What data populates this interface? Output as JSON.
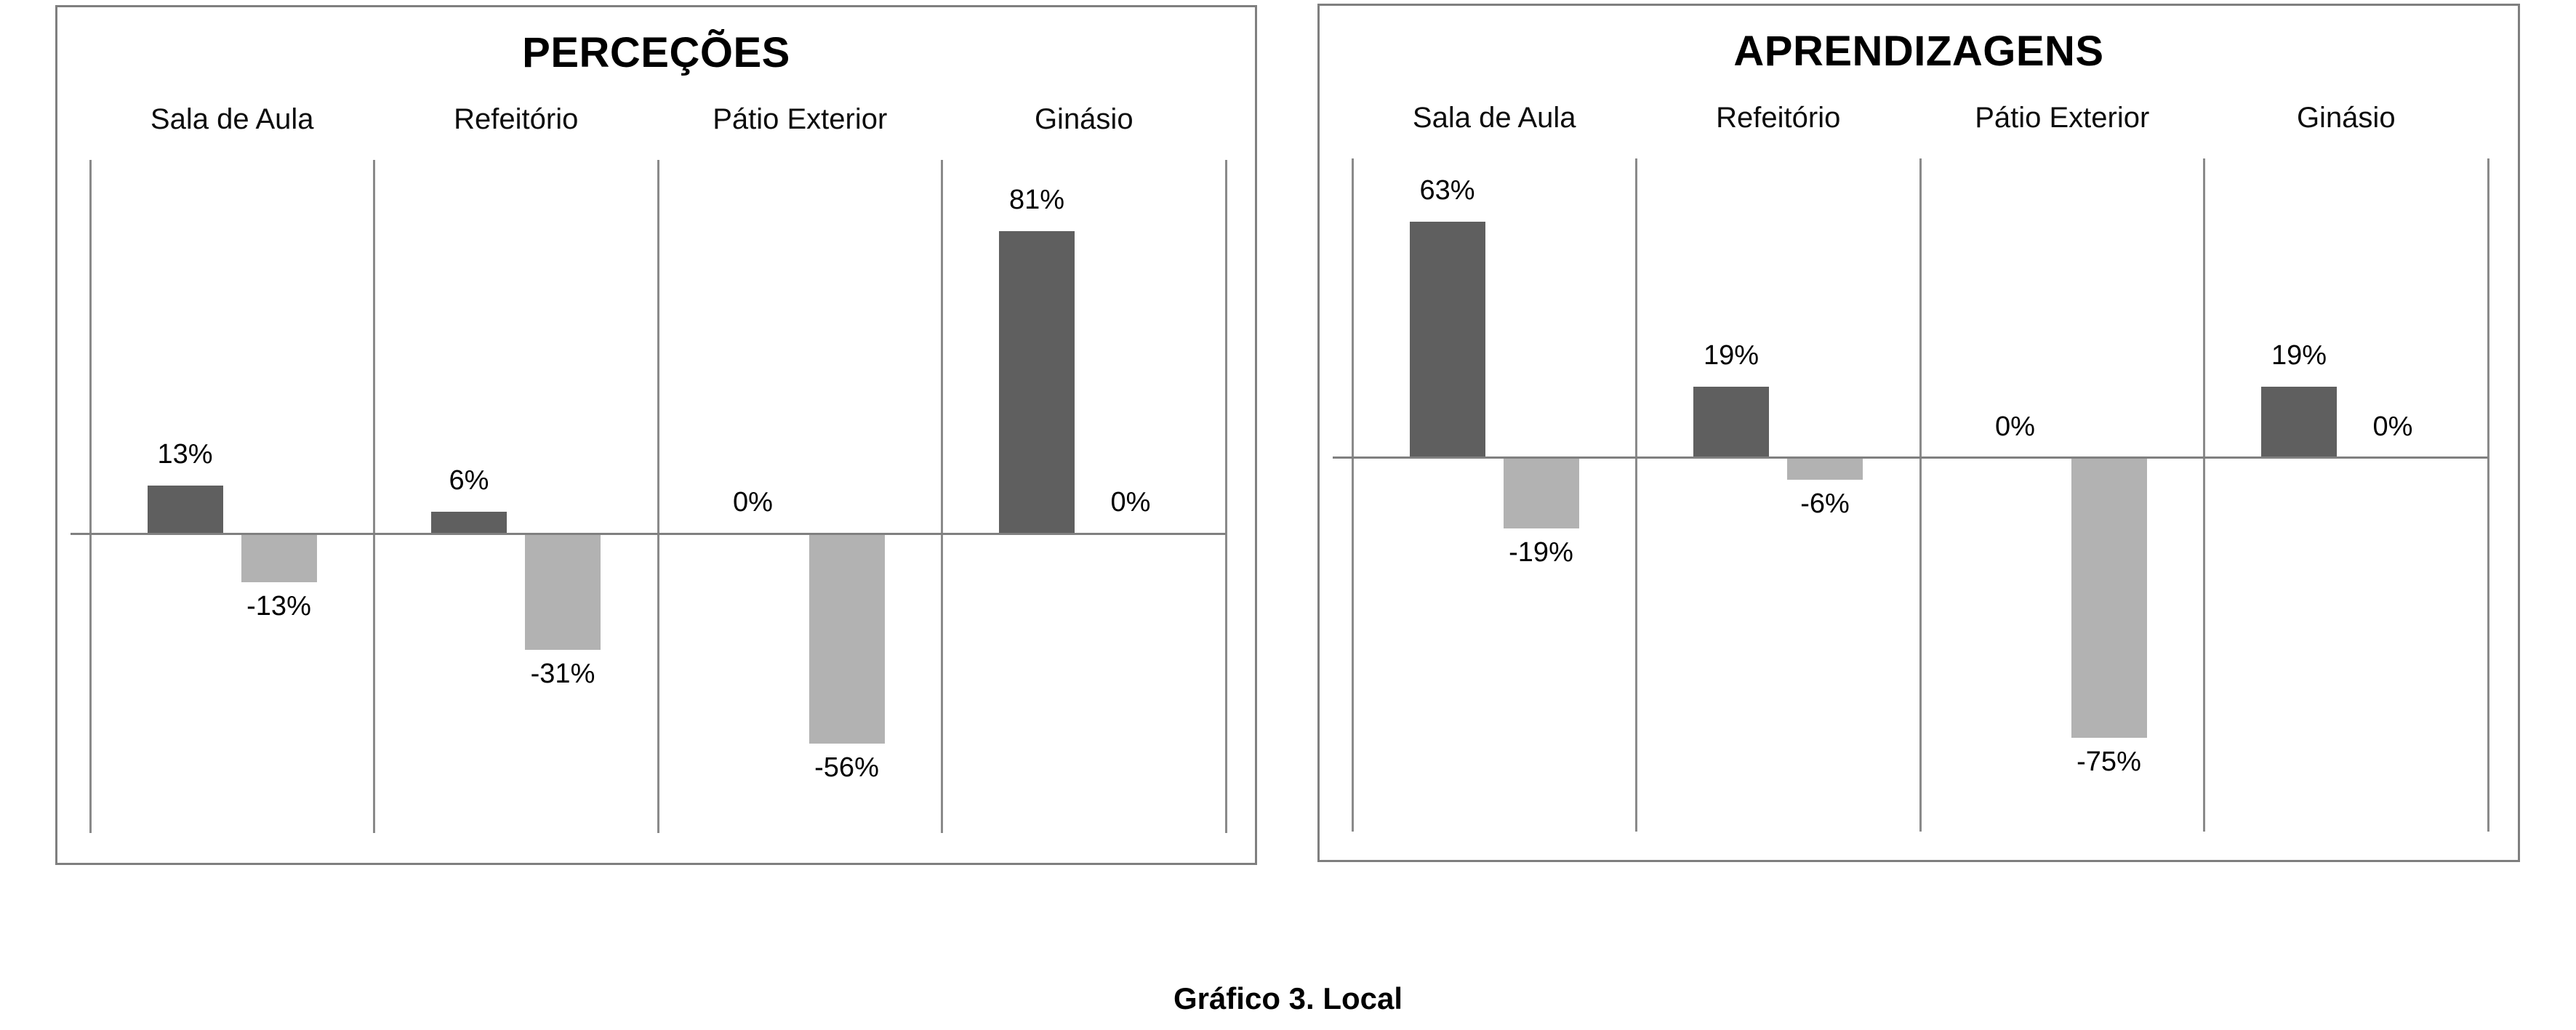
{
  "colors": {
    "dark_bar": "#5f5f5f",
    "light_bar": "#b2b2b2",
    "axis_line": "#808080",
    "grid_line": "#8a8a8a",
    "box_border": "#7f7f7f",
    "text": "#000000",
    "background": "#ffffff"
  },
  "caption": {
    "text": "Gráfico 3. Local"
  },
  "chart_data": [
    {
      "type": "bar",
      "title": "PERCEÇÕES",
      "categories": [
        "Sala de Aula",
        "Refeitório",
        "Pátio Exterior",
        "Ginásio"
      ],
      "series": [
        {
          "role": "dark",
          "color": "#5f5f5f",
          "values": [
            13,
            6,
            0,
            81
          ],
          "labels": [
            "13%",
            "6%",
            "0%",
            "81%"
          ]
        },
        {
          "role": "light",
          "color": "#b2b2b2",
          "values": [
            -13,
            -31,
            -56,
            0
          ],
          "labels": [
            "-13%",
            "-31%",
            "-56%",
            "0%"
          ]
        }
      ],
      "unit": "%",
      "ylim": [
        -80,
        100
      ],
      "legend": false,
      "grid": "category-dividers"
    },
    {
      "type": "bar",
      "title": "APRENDIZAGENS",
      "categories": [
        "Sala de Aula",
        "Refeitório",
        "Pátio Exterior",
        "Ginásio"
      ],
      "series": [
        {
          "role": "dark",
          "color": "#5f5f5f",
          "values": [
            63,
            19,
            0,
            19
          ],
          "labels": [
            "63%",
            "19%",
            "0%",
            "19%"
          ]
        },
        {
          "role": "light",
          "color": "#b2b2b2",
          "values": [
            -19,
            -6,
            -75,
            0
          ],
          "labels": [
            "-19%",
            "-6%",
            "-75%",
            "0%"
          ]
        }
      ],
      "unit": "%",
      "ylim": [
        -100,
        80
      ],
      "legend": false,
      "grid": "category-dividers"
    }
  ]
}
